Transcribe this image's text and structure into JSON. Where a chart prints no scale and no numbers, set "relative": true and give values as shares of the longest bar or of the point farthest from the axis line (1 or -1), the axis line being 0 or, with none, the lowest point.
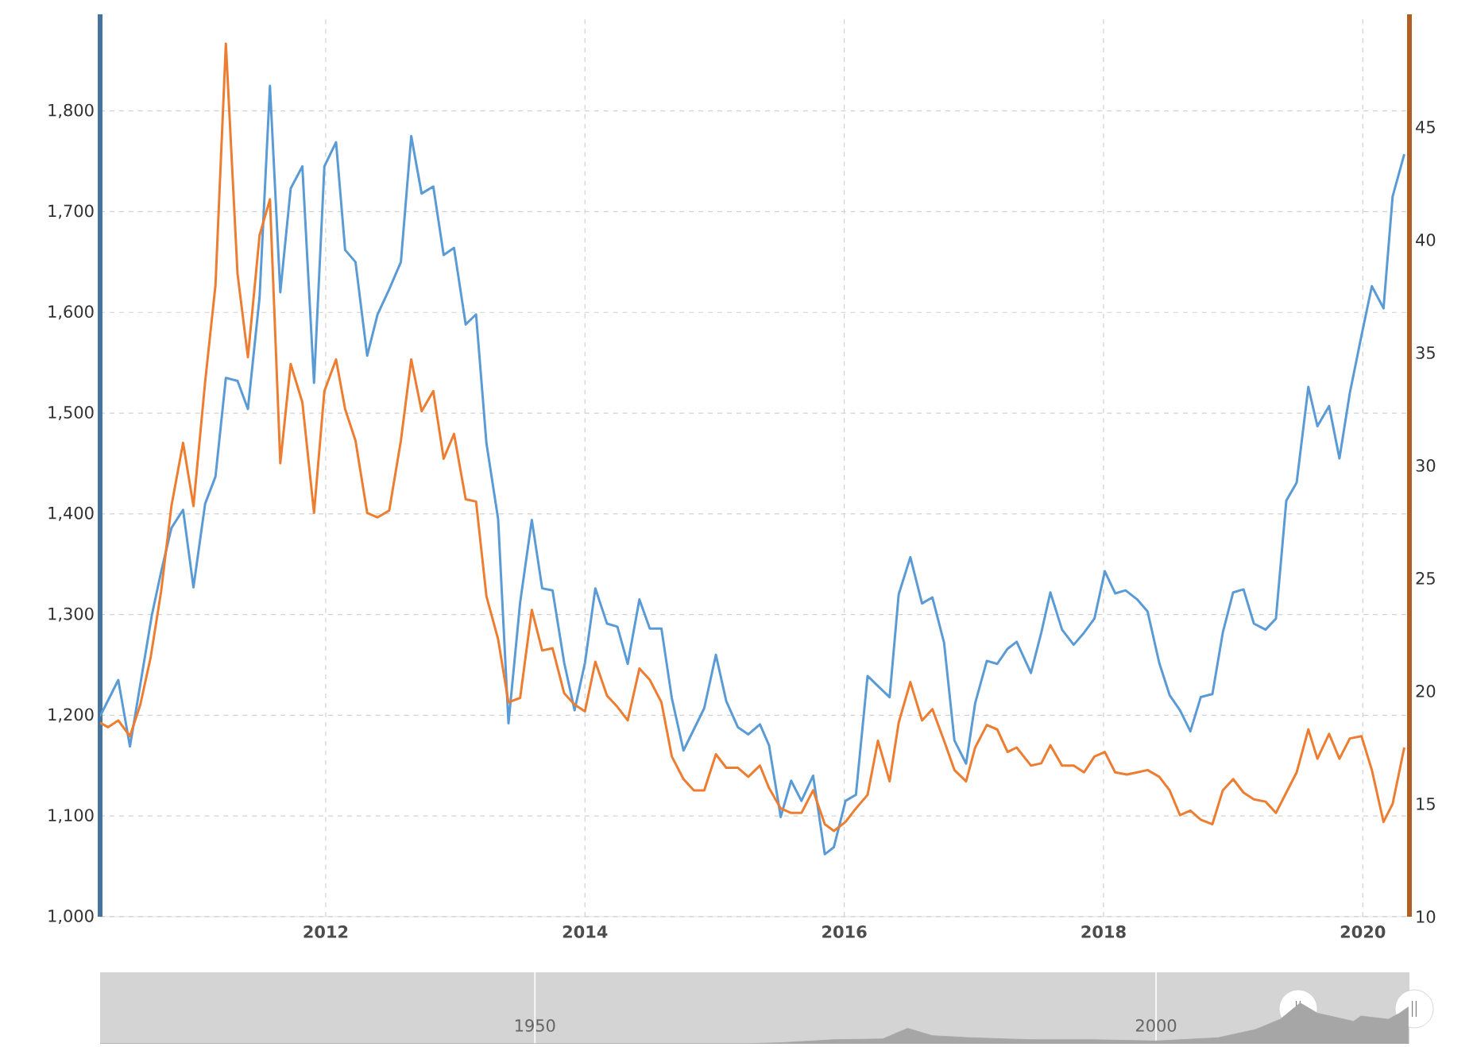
{
  "chart_data": [
    {
      "type": "line",
      "xlim": [
        2010.26,
        2020.36
      ],
      "xticks": [
        2012,
        2014,
        2016,
        2018,
        2020
      ],
      "ylim": [
        1000,
        1896
      ],
      "yticks": [
        {
          "value": 1000,
          "label": "1,000"
        },
        {
          "value": 1100,
          "label": "1,100"
        },
        {
          "value": 1200,
          "label": "1,200"
        },
        {
          "value": 1300,
          "label": "1,300"
        },
        {
          "value": 1400,
          "label": "1,400"
        },
        {
          "value": 1500,
          "label": "1,500"
        },
        {
          "value": 1600,
          "label": "1,600"
        },
        {
          "value": 1700,
          "label": "1,700"
        },
        {
          "value": 1800,
          "label": "1,800"
        }
      ],
      "y2lim": [
        10,
        50
      ],
      "y2ticks": [
        10,
        15,
        20,
        25,
        30,
        35,
        40,
        45
      ],
      "grid": true,
      "series": [
        {
          "color": "#5b9bd5",
          "x": [
            2010.26,
            2010.4,
            2010.49,
            2010.66,
            2010.73,
            2010.81,
            2010.9,
            2010.98,
            2011.07,
            2011.15,
            2011.23,
            2011.32,
            2011.4,
            2011.49,
            2011.57,
            2011.65,
            2011.73,
            2011.82,
            2011.91,
            2011.99,
            2012.08,
            2012.15,
            2012.23,
            2012.32,
            2012.4,
            2012.49,
            2012.58,
            2012.66,
            2012.74,
            2012.83,
            2012.91,
            2012.99,
            2013.08,
            2013.16,
            2013.24,
            2013.33,
            2013.41,
            2013.5,
            2013.59,
            2013.67,
            2013.75,
            2013.84,
            2013.92,
            2014.0,
            2014.08,
            2014.17,
            2014.25,
            2014.33,
            2014.42,
            2014.5,
            2014.59,
            2014.67,
            2014.76,
            2014.84,
            2014.92,
            2015.01,
            2015.09,
            2015.18,
            2015.26,
            2015.35,
            2015.42,
            2015.51,
            2015.59,
            2015.67,
            2015.76,
            2015.85,
            2015.92,
            2016.01,
            2016.09,
            2016.18,
            2016.26,
            2016.35,
            2016.42,
            2016.51,
            2016.6,
            2016.68,
            2016.77,
            2016.85,
            2016.94,
            2017.01,
            2017.1,
            2017.18,
            2017.26,
            2017.33,
            2017.44,
            2017.52,
            2017.59,
            2017.68,
            2017.77,
            2017.85,
            2017.93,
            2018.01,
            2018.09,
            2018.17,
            2018.26,
            2018.34,
            2018.43,
            2018.51,
            2018.59,
            2018.67,
            2018.75,
            2018.84,
            2018.92,
            2019.0,
            2019.08,
            2019.16,
            2019.25,
            2019.33,
            2019.41,
            2019.49,
            2019.58,
            2019.65,
            2019.74,
            2019.82,
            2019.9,
            2019.99,
            2020.07,
            2020.16,
            2020.23,
            2020.32
          ],
          "values": [
            1199,
            1235,
            1169,
            1300,
            1342,
            1386,
            1404,
            1327,
            1410,
            1437,
            1535,
            1532,
            1504,
            1615,
            1825,
            1620,
            1723,
            1745,
            1530,
            1745,
            1769,
            1662,
            1650,
            1557,
            1598,
            1623,
            1650,
            1775,
            1718,
            1725,
            1657,
            1664,
            1588,
            1598,
            1470,
            1395,
            1192,
            1312,
            1394,
            1326,
            1324,
            1252,
            1205,
            1252,
            1326,
            1291,
            1288,
            1251,
            1315,
            1286,
            1286,
            1217,
            1165,
            1186,
            1207,
            1260,
            1214,
            1188,
            1181,
            1191,
            1170,
            1099,
            1135,
            1115,
            1140,
            1062,
            1069,
            1115,
            1121,
            1239,
            1229,
            1218,
            1320,
            1357,
            1311,
            1317,
            1272,
            1175,
            1152,
            1212,
            1254,
            1251,
            1266,
            1273,
            1242,
            1282,
            1322,
            1285,
            1270,
            1282,
            1296,
            1343,
            1321,
            1324,
            1315,
            1303,
            1252,
            1220,
            1205,
            1184,
            1218,
            1221,
            1282,
            1322,
            1325,
            1291,
            1285,
            1296,
            1413,
            1431,
            1526,
            1487,
            1507,
            1455,
            1520,
            1577,
            1626,
            1604,
            1715,
            1757
          ]
        },
        {
          "color": "#ed7d31",
          "axis": "y2",
          "x": [
            2010.26,
            2010.32,
            2010.4,
            2010.49,
            2010.57,
            2010.65,
            2010.73,
            2010.81,
            2010.9,
            2010.98,
            2011.07,
            2011.15,
            2011.23,
            2011.32,
            2011.4,
            2011.49,
            2011.57,
            2011.65,
            2011.73,
            2011.82,
            2011.91,
            2011.99,
            2012.08,
            2012.15,
            2012.23,
            2012.32,
            2012.4,
            2012.49,
            2012.58,
            2012.66,
            2012.74,
            2012.83,
            2012.91,
            2012.99,
            2013.08,
            2013.16,
            2013.24,
            2013.33,
            2013.41,
            2013.5,
            2013.59,
            2013.67,
            2013.75,
            2013.84,
            2013.92,
            2014.0,
            2014.08,
            2014.17,
            2014.25,
            2014.33,
            2014.42,
            2014.5,
            2014.59,
            2014.67,
            2014.76,
            2014.84,
            2014.92,
            2015.01,
            2015.09,
            2015.18,
            2015.26,
            2015.35,
            2015.42,
            2015.51,
            2015.59,
            2015.67,
            2015.76,
            2015.85,
            2015.92,
            2016.01,
            2016.09,
            2016.18,
            2016.26,
            2016.35,
            2016.42,
            2016.51,
            2016.6,
            2016.68,
            2016.77,
            2016.85,
            2016.94,
            2017.01,
            2017.1,
            2017.18,
            2017.26,
            2017.33,
            2017.44,
            2017.52,
            2017.59,
            2017.68,
            2017.77,
            2017.85,
            2017.93,
            2018.01,
            2018.09,
            2018.18,
            2018.26,
            2018.34,
            2018.43,
            2018.51,
            2018.59,
            2018.67,
            2018.75,
            2018.84,
            2018.92,
            2019.0,
            2019.08,
            2019.16,
            2019.25,
            2019.33,
            2019.41,
            2019.49,
            2019.58,
            2019.65,
            2019.74,
            2019.82,
            2019.9,
            2019.99,
            2020.07,
            2020.16,
            2020.23,
            2020.32
          ],
          "values": [
            18.6,
            18.4,
            18.7,
            18.0,
            19.4,
            21.5,
            24.4,
            28.2,
            31.0,
            28.2,
            33.7,
            38.0,
            48.7,
            38.5,
            34.8,
            40.2,
            41.8,
            30.1,
            34.5,
            32.8,
            27.9,
            33.3,
            34.7,
            32.5,
            31.1,
            27.9,
            27.7,
            28.0,
            31.1,
            34.7,
            32.4,
            33.3,
            30.3,
            31.4,
            28.5,
            28.4,
            24.2,
            22.3,
            19.5,
            19.7,
            23.6,
            21.8,
            21.9,
            19.9,
            19.4,
            19.1,
            21.3,
            19.8,
            19.3,
            18.7,
            21.0,
            20.5,
            19.5,
            17.1,
            16.1,
            15.6,
            15.6,
            17.2,
            16.6,
            16.6,
            16.2,
            16.7,
            15.7,
            14.8,
            14.6,
            14.6,
            15.6,
            14.1,
            13.8,
            14.2,
            14.8,
            15.4,
            17.8,
            16.0,
            18.6,
            20.4,
            18.7,
            19.2,
            17.8,
            16.5,
            16.0,
            17.5,
            18.5,
            18.3,
            17.3,
            17.5,
            16.7,
            16.8,
            17.6,
            16.7,
            16.7,
            16.4,
            17.1,
            17.3,
            16.4,
            16.3,
            16.4,
            16.5,
            16.2,
            15.6,
            14.5,
            14.7,
            14.3,
            14.1,
            15.6,
            16.1,
            15.5,
            15.2,
            15.1,
            14.6,
            15.5,
            16.4,
            18.3,
            17.0,
            18.1,
            17.0,
            17.9,
            18.0,
            16.5,
            14.2,
            15.0,
            17.5
          ]
        }
      ]
    },
    {
      "type": "area",
      "relative": true,
      "xlim": [
        1915,
        2020.4
      ],
      "xticks": [
        1950,
        2000
      ],
      "grid": "x",
      "color": "#a6a6a6",
      "x": [
        1915,
        1967,
        1970,
        1974,
        1978,
        1980,
        1982,
        1985,
        1990,
        1995,
        2000,
        2005,
        2008,
        2010,
        2011.6,
        2013,
        2015.9,
        2016.5,
        2018.7,
        2019.6,
        2020.3
      ],
      "values": [
        0,
        0,
        0.03,
        0.1,
        0.12,
        0.38,
        0.2,
        0.15,
        0.1,
        0.1,
        0.07,
        0.15,
        0.35,
        0.6,
        1,
        0.75,
        0.55,
        0.68,
        0.6,
        0.75,
        0.9
      ]
    }
  ]
}
